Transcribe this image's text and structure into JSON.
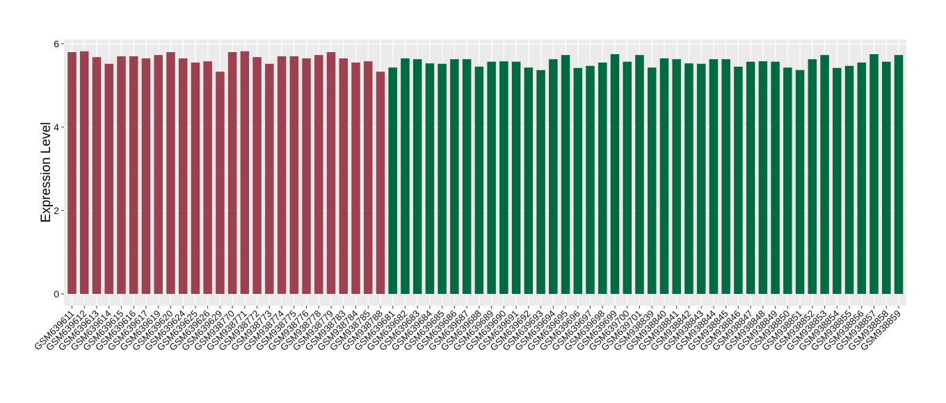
{
  "chart_data": {
    "type": "bar",
    "title": "",
    "xlabel": "",
    "ylabel": "Expression Level",
    "ylim": [
      0,
      6
    ],
    "yticks": [
      0,
      2,
      4,
      6
    ],
    "grid": true,
    "colors": {
      "group1": "#9B4150",
      "group2": "#006A40",
      "panel": "#EBEBEB"
    },
    "categories": [
      "GSM639611",
      "GSM639612",
      "GSM639613",
      "GSM639614",
      "GSM639615",
      "GSM639616",
      "GSM639617",
      "GSM639619",
      "GSM639620",
      "GSM639624",
      "GSM639625",
      "GSM639626",
      "GSM639629",
      "GSM938770",
      "GSM938771",
      "GSM938772",
      "GSM938773",
      "GSM938774",
      "GSM938775",
      "GSM938776",
      "GSM938778",
      "GSM938779",
      "GSM938783",
      "GSM938784",
      "GSM938785",
      "GSM938788",
      "GSM639681",
      "GSM639682",
      "GSM639683",
      "GSM639684",
      "GSM639685",
      "GSM639686",
      "GSM639687",
      "GSM639688",
      "GSM639689",
      "GSM639690",
      "GSM639691",
      "GSM639692",
      "GSM639693",
      "GSM639694",
      "GSM639695",
      "GSM639696",
      "GSM639697",
      "GSM639698",
      "GSM639699",
      "GSM639700",
      "GSM639701",
      "GSM938839",
      "GSM938840",
      "GSM938841",
      "GSM938842",
      "GSM938843",
      "GSM938844",
      "GSM938845",
      "GSM938846",
      "GSM938847",
      "GSM938848",
      "GSM938849",
      "GSM938850",
      "GSM938851",
      "GSM938852",
      "GSM938853",
      "GSM938854",
      "GSM938855",
      "GSM938856",
      "GSM938857",
      "GSM938858",
      "GSM938859"
    ],
    "values": [
      5.8,
      5.82,
      5.68,
      5.52,
      5.7,
      5.7,
      5.65,
      5.73,
      5.8,
      5.65,
      5.55,
      5.58,
      5.33,
      5.8,
      5.82,
      5.68,
      5.52,
      5.7,
      5.7,
      5.65,
      5.73,
      5.8,
      5.65,
      5.55,
      5.58,
      5.33,
      5.43,
      5.65,
      5.63,
      5.53,
      5.52,
      5.63,
      5.63,
      5.45,
      5.57,
      5.58,
      5.57,
      5.43,
      5.37,
      5.63,
      5.73,
      5.42,
      5.47,
      5.55,
      5.75,
      5.57,
      5.73,
      5.43,
      5.65,
      5.63,
      5.53,
      5.52,
      5.63,
      5.63,
      5.45,
      5.57,
      5.58,
      5.57,
      5.43,
      5.37,
      5.63,
      5.73,
      5.42,
      5.47,
      5.55,
      5.75,
      5.57,
      5.73
    ],
    "groups": [
      1,
      1,
      1,
      1,
      1,
      1,
      1,
      1,
      1,
      1,
      1,
      1,
      1,
      1,
      1,
      1,
      1,
      1,
      1,
      1,
      1,
      1,
      1,
      1,
      1,
      1,
      2,
      2,
      2,
      2,
      2,
      2,
      2,
      2,
      2,
      2,
      2,
      2,
      2,
      2,
      2,
      2,
      2,
      2,
      2,
      2,
      2,
      2,
      2,
      2,
      2,
      2,
      2,
      2,
      2,
      2,
      2,
      2,
      2,
      2,
      2,
      2,
      2,
      2,
      2,
      2,
      2,
      2
    ]
  }
}
